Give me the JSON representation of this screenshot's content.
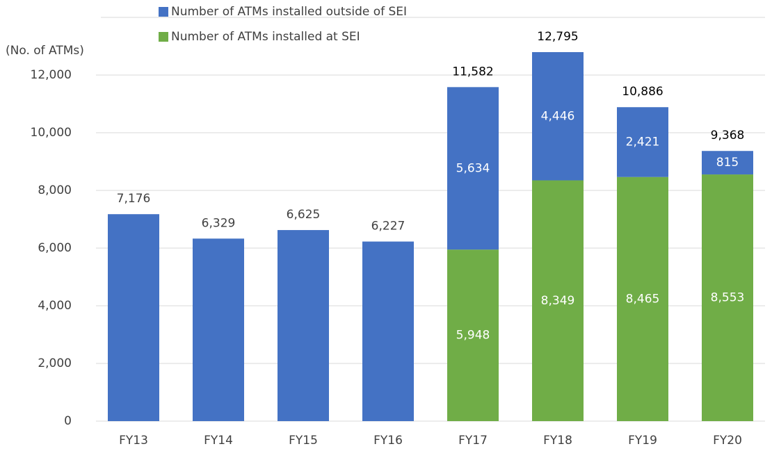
{
  "chart_data": {
    "type": "stacked_bar",
    "axis_label": "(No. of ATMs)",
    "categories": [
      "FY13",
      "FY14",
      "FY15",
      "FY16",
      "FY17",
      "FY18",
      "FY19",
      "FY20"
    ],
    "series": [
      {
        "name": "Number of ATMs installed at SEI",
        "color": "#70ad47",
        "values": [
          null,
          null,
          null,
          null,
          5948,
          8349,
          8465,
          8553
        ],
        "value_labels": [
          null,
          null,
          null,
          null,
          "5,948",
          "8,349",
          "8,465",
          "8,553"
        ]
      },
      {
        "name": "Number of ATMs installed outside of SEI",
        "color": "#4472c4",
        "values": [
          7176,
          6329,
          6625,
          6227,
          5634,
          4446,
          2421,
          815
        ],
        "value_labels": [
          null,
          null,
          null,
          null,
          "5,634",
          "4,446",
          "2,421",
          "815"
        ]
      }
    ],
    "totals": [
      7176,
      6329,
      6625,
      6227,
      11582,
      12795,
      10886,
      9368
    ],
    "total_labels": [
      "7,176",
      "6,329",
      "6,625",
      "6,227",
      "11,582",
      "12,795",
      "10,886",
      "9,368"
    ],
    "ylim": [
      0,
      14000
    ],
    "yticks": [
      0,
      {
        "value": 2000,
        "label": "2,000"
      },
      {
        "value": 4000,
        "label": "4,000"
      },
      {
        "value": 6000,
        "label": "6,000"
      },
      {
        "value": 8000,
        "label": "8,000"
      },
      {
        "value": 10000,
        "label": "10,000"
      },
      {
        "value": 12000,
        "label": "12,000"
      }
    ],
    "grid": true
  }
}
